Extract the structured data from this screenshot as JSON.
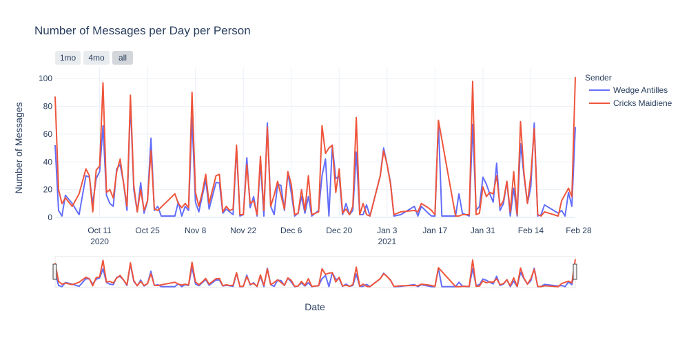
{
  "chart_data": {
    "type": "line",
    "title": "Number of Messages per Day per Person",
    "xlabel": "Date",
    "ylabel": "Number of Messages",
    "ylim": [
      0,
      108
    ],
    "yticks": [
      0,
      20,
      40,
      60,
      80,
      100
    ],
    "x_range": [
      0,
      152
    ],
    "xticks": [
      {
        "pos": 13,
        "label": "Oct 11",
        "sub": "2020"
      },
      {
        "pos": 27,
        "label": "Oct 25",
        "sub": ""
      },
      {
        "pos": 41,
        "label": "Nov 8",
        "sub": ""
      },
      {
        "pos": 55,
        "label": "Nov 22",
        "sub": ""
      },
      {
        "pos": 69,
        "label": "Dec 6",
        "sub": ""
      },
      {
        "pos": 83,
        "label": "Dec 20",
        "sub": ""
      },
      {
        "pos": 97,
        "label": "Jan 3",
        "sub": "2021"
      },
      {
        "pos": 111,
        "label": "Jan 17",
        "sub": ""
      },
      {
        "pos": 125,
        "label": "Jan 31",
        "sub": ""
      },
      {
        "pos": 139,
        "label": "Feb 14",
        "sub": ""
      },
      {
        "pos": 153,
        "label": "Feb 28",
        "sub": ""
      }
    ],
    "range_buttons": [
      {
        "label": "1mo",
        "active": false
      },
      {
        "label": "4mo",
        "active": false
      },
      {
        "label": "all",
        "active": true
      }
    ],
    "legend_title": "Sender",
    "series": [
      {
        "name": "Wedge Antilles",
        "color": "#636efa",
        "points": [
          [
            0,
            52
          ],
          [
            1,
            5
          ],
          [
            2,
            1
          ],
          [
            3,
            16
          ],
          [
            5,
            10
          ],
          [
            7,
            2
          ],
          [
            9,
            30
          ],
          [
            10,
            29
          ],
          [
            11,
            10
          ],
          [
            12,
            28
          ],
          [
            13,
            33
          ],
          [
            14,
            66
          ],
          [
            15,
            16
          ],
          [
            16,
            10
          ],
          [
            17,
            8
          ],
          [
            18,
            35
          ],
          [
            19,
            38
          ],
          [
            20,
            25
          ],
          [
            21,
            5
          ],
          [
            22,
            83
          ],
          [
            23,
            20
          ],
          [
            24,
            4
          ],
          [
            25,
            25
          ],
          [
            26,
            3
          ],
          [
            27,
            12
          ],
          [
            28,
            57
          ],
          [
            29,
            5
          ],
          [
            30,
            8
          ],
          [
            31,
            1
          ],
          [
            35,
            1
          ],
          [
            36,
            11
          ],
          [
            37,
            1
          ],
          [
            38,
            8
          ],
          [
            39,
            5
          ],
          [
            40,
            72
          ],
          [
            41,
            11
          ],
          [
            42,
            4
          ],
          [
            44,
            27
          ],
          [
            45,
            6
          ],
          [
            47,
            25
          ],
          [
            48,
            25
          ],
          [
            49,
            3
          ],
          [
            50,
            6
          ],
          [
            51,
            4
          ],
          [
            52,
            2
          ],
          [
            53,
            50
          ],
          [
            54,
            1
          ],
          [
            55,
            2
          ],
          [
            56,
            43
          ],
          [
            57,
            7
          ],
          [
            58,
            15
          ],
          [
            59,
            1
          ],
          [
            60,
            40
          ],
          [
            61,
            1
          ],
          [
            62,
            68
          ],
          [
            63,
            8
          ],
          [
            64,
            2
          ],
          [
            65,
            24
          ],
          [
            66,
            23
          ],
          [
            67,
            5
          ],
          [
            68,
            32
          ],
          [
            69,
            18
          ],
          [
            70,
            1
          ],
          [
            71,
            3
          ],
          [
            72,
            15
          ],
          [
            73,
            3
          ],
          [
            74,
            15
          ],
          [
            75,
            1
          ],
          [
            77,
            5
          ],
          [
            78,
            30
          ],
          [
            79,
            42
          ],
          [
            80,
            1
          ],
          [
            81,
            52
          ],
          [
            82,
            28
          ],
          [
            83,
            30
          ],
          [
            84,
            2
          ],
          [
            85,
            10
          ],
          [
            86,
            2
          ],
          [
            87,
            5
          ],
          [
            88,
            47
          ],
          [
            89,
            2
          ],
          [
            90,
            2
          ],
          [
            91,
            9
          ],
          [
            92,
            1
          ],
          [
            95,
            30
          ],
          [
            96,
            50
          ],
          [
            97,
            38
          ],
          [
            98,
            25
          ],
          [
            99,
            1
          ],
          [
            101,
            2
          ],
          [
            105,
            8
          ],
          [
            106,
            1
          ],
          [
            107,
            8
          ],
          [
            109,
            3
          ],
          [
            110,
            1
          ],
          [
            111,
            1
          ],
          [
            112,
            68
          ],
          [
            113,
            1
          ],
          [
            117,
            1
          ],
          [
            118,
            17
          ],
          [
            119,
            3
          ],
          [
            120,
            2
          ],
          [
            121,
            1
          ],
          [
            122,
            67
          ],
          [
            123,
            5
          ],
          [
            124,
            8
          ],
          [
            125,
            29
          ],
          [
            126,
            24
          ],
          [
            127,
            17
          ],
          [
            128,
            11
          ],
          [
            129,
            39
          ],
          [
            130,
            5
          ],
          [
            131,
            10
          ],
          [
            132,
            26
          ],
          [
            133,
            1
          ],
          [
            134,
            21
          ],
          [
            135,
            1
          ],
          [
            136,
            53
          ],
          [
            137,
            30
          ],
          [
            138,
            10
          ],
          [
            139,
            22
          ],
          [
            140,
            68
          ],
          [
            141,
            1
          ],
          [
            142,
            2
          ],
          [
            143,
            9
          ],
          [
            147,
            3
          ],
          [
            148,
            5
          ],
          [
            149,
            1
          ],
          [
            150,
            18
          ],
          [
            151,
            8
          ],
          [
            152,
            65
          ]
        ]
      },
      {
        "name": "Cricks Maidiene",
        "color": "#ef553b",
        "points": [
          [
            0,
            87
          ],
          [
            1,
            20
          ],
          [
            2,
            10
          ],
          [
            3,
            14
          ],
          [
            5,
            8
          ],
          [
            7,
            17
          ],
          [
            9,
            35
          ],
          [
            10,
            30
          ],
          [
            11,
            4
          ],
          [
            12,
            34
          ],
          [
            13,
            37
          ],
          [
            14,
            97
          ],
          [
            15,
            18
          ],
          [
            16,
            20
          ],
          [
            17,
            14
          ],
          [
            18,
            33
          ],
          [
            19,
            42
          ],
          [
            20,
            25
          ],
          [
            21,
            8
          ],
          [
            22,
            88
          ],
          [
            23,
            23
          ],
          [
            24,
            4
          ],
          [
            25,
            20
          ],
          [
            26,
            5
          ],
          [
            27,
            12
          ],
          [
            28,
            48
          ],
          [
            29,
            6
          ],
          [
            30,
            5
          ],
          [
            35,
            17
          ],
          [
            36,
            10
          ],
          [
            37,
            7
          ],
          [
            38,
            10
          ],
          [
            39,
            7
          ],
          [
            40,
            90
          ],
          [
            41,
            18
          ],
          [
            42,
            8
          ],
          [
            43,
            18
          ],
          [
            44,
            31
          ],
          [
            45,
            10
          ],
          [
            46,
            20
          ],
          [
            47,
            30
          ],
          [
            48,
            31
          ],
          [
            49,
            4
          ],
          [
            50,
            8
          ],
          [
            51,
            5
          ],
          [
            52,
            6
          ],
          [
            53,
            52
          ],
          [
            54,
            2
          ],
          [
            55,
            2
          ],
          [
            56,
            38
          ],
          [
            57,
            10
          ],
          [
            58,
            12
          ],
          [
            59,
            2
          ],
          [
            60,
            44
          ],
          [
            61,
            5
          ],
          [
            62,
            65
          ],
          [
            63,
            8
          ],
          [
            64,
            16
          ],
          [
            65,
            26
          ],
          [
            66,
            16
          ],
          [
            67,
            6
          ],
          [
            68,
            33
          ],
          [
            69,
            24
          ],
          [
            70,
            2
          ],
          [
            71,
            3
          ],
          [
            72,
            20
          ],
          [
            73,
            5
          ],
          [
            74,
            30
          ],
          [
            75,
            2
          ],
          [
            77,
            4
          ],
          [
            78,
            66
          ],
          [
            79,
            46
          ],
          [
            80,
            50
          ],
          [
            81,
            52
          ],
          [
            82,
            18
          ],
          [
            83,
            35
          ],
          [
            84,
            3
          ],
          [
            85,
            6
          ],
          [
            86,
            2
          ],
          [
            87,
            8
          ],
          [
            88,
            72
          ],
          [
            89,
            2
          ],
          [
            90,
            10
          ],
          [
            91,
            2
          ],
          [
            92,
            1
          ],
          [
            95,
            30
          ],
          [
            96,
            48
          ],
          [
            97,
            38
          ],
          [
            98,
            24
          ],
          [
            99,
            2
          ],
          [
            101,
            4
          ],
          [
            105,
            5
          ],
          [
            106,
            4
          ],
          [
            107,
            10
          ],
          [
            109,
            7
          ],
          [
            110,
            5
          ],
          [
            111,
            2
          ],
          [
            112,
            70
          ],
          [
            117,
            1
          ],
          [
            118,
            1
          ],
          [
            119,
            2
          ],
          [
            120,
            2
          ],
          [
            121,
            2
          ],
          [
            122,
            98
          ],
          [
            123,
            2
          ],
          [
            124,
            3
          ],
          [
            125,
            22
          ],
          [
            126,
            15
          ],
          [
            127,
            18
          ],
          [
            128,
            17
          ],
          [
            129,
            30
          ],
          [
            130,
            8
          ],
          [
            131,
            12
          ],
          [
            132,
            26
          ],
          [
            133,
            4
          ],
          [
            134,
            33
          ],
          [
            135,
            2
          ],
          [
            136,
            69
          ],
          [
            137,
            32
          ],
          [
            138,
            10
          ],
          [
            139,
            30
          ],
          [
            140,
            64
          ],
          [
            141,
            2
          ],
          [
            142,
            1
          ],
          [
            143,
            4
          ],
          [
            147,
            1
          ],
          [
            148,
            12
          ],
          [
            150,
            21
          ],
          [
            151,
            15
          ],
          [
            152,
            101
          ]
        ]
      }
    ]
  }
}
